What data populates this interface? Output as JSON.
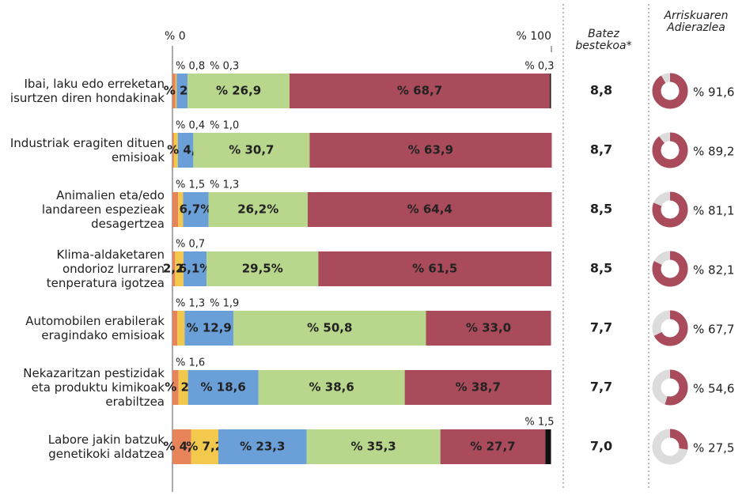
{
  "chart_data": {
    "type": "stacked_bar_horizontal",
    "categories": [
      "Ibai, laku edo erreketan isurtzen diren hondakinak",
      "Industriak eragiten dituen emisioak",
      "Animalien eta/edo landareen espezieak desagertzea",
      "Klima-aldaketaren ondorioz lurraren tenperatura igotzea",
      "Automobilen erabilerak eragindako emisioak",
      "Nekazaritzan pestizidak eta produktu kimikoak erabiltzea",
      "Labore jakin batzuk genetikoki aldatzea"
    ],
    "xlim": [
      0,
      100
    ],
    "xticks": [
      {
        "value": 0,
        "label": "% 0"
      },
      {
        "value": 100,
        "label": "% 100"
      }
    ],
    "series": [
      {
        "color": "#e8845a",
        "values": [
          0.8,
          0.4,
          1.5,
          0.7,
          1.3,
          1.6,
          4.9
        ],
        "value_labels": [
          "% 0,8",
          "% 0,4",
          "% 1,5",
          "% 0,7",
          "% 1,3",
          "% 1,6",
          "% 4,9"
        ]
      },
      {
        "color": "#f2c94c",
        "values": [
          0.3,
          1.0,
          1.3,
          2.2,
          1.9,
          2.5,
          7.2
        ],
        "value_labels": [
          "% 0,3",
          "% 1,0",
          "% 1,3",
          "2,2%",
          "% 1,9",
          "% 2,5",
          "% 7,2"
        ]
      },
      {
        "color": "#6a9fd8",
        "values": [
          2.9,
          4.1,
          6.7,
          6.1,
          12.9,
          18.6,
          23.3
        ],
        "value_labels": [
          "% 2,9",
          "% 4,1",
          "6,7%",
          "6,1%",
          "% 12,9",
          "% 18,6",
          "% 23,3"
        ]
      },
      {
        "color": "#b8d68c",
        "values": [
          26.9,
          30.7,
          26.2,
          29.5,
          50.8,
          38.6,
          35.3
        ],
        "value_labels": [
          "% 26,9",
          "% 30,7",
          "26,2%",
          "29,5%",
          "% 50,8",
          "% 38,6",
          "% 35,3"
        ]
      },
      {
        "color": "#a94b5b",
        "values": [
          68.7,
          63.9,
          64.4,
          61.5,
          33.0,
          38.7,
          27.7
        ],
        "value_labels": [
          "% 68,7",
          "% 63,9",
          "% 64,4",
          "% 61,5",
          "% 33,0",
          "% 38,7",
          "% 27,7"
        ]
      },
      {
        "color": "#111111",
        "values": [
          0.3,
          null,
          null,
          null,
          null,
          null,
          1.5
        ],
        "value_labels": [
          "% 0,3",
          null,
          null,
          null,
          null,
          null,
          "% 1,5"
        ]
      }
    ],
    "average": {
      "title": "Batez bestekoa*",
      "values": [
        8.8,
        8.7,
        8.5,
        8.5,
        7.7,
        7.7,
        7.0
      ],
      "value_labels": [
        "8,8",
        "8,7",
        "8,5",
        "8,5",
        "7,7",
        "7,7",
        "7,0"
      ]
    },
    "risk_index": {
      "title": "Arriskuaren Adierazlea",
      "color": "#a94b5b",
      "rest_color": "#dcdcdc",
      "values": [
        91.6,
        89.2,
        81.1,
        82.1,
        67.7,
        54.6,
        27.5
      ],
      "value_labels": [
        "% 91,6",
        "% 89,2",
        "% 81,1",
        "% 82,1",
        "% 67,7",
        "% 54,6",
        "% 27,5"
      ]
    }
  }
}
